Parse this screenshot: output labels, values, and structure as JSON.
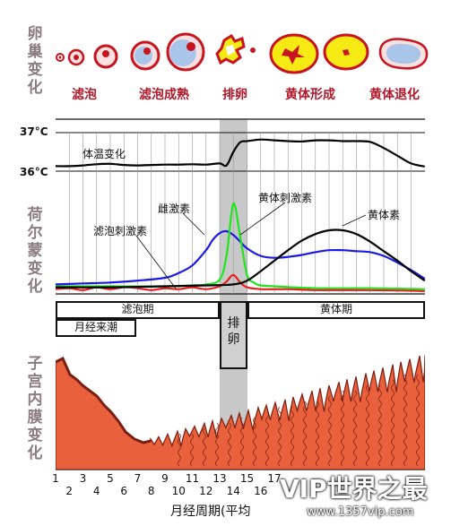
{
  "sections": {
    "ovary": [
      "卵",
      "巢",
      "变",
      "化"
    ],
    "hormone": [
      "荷",
      "尔",
      "蒙",
      "变",
      "化"
    ],
    "endometrium": [
      "子",
      "宫",
      "内",
      "膜",
      "变",
      "化"
    ]
  },
  "ovary_stages": [
    "滤泡",
    "滤泡成熟",
    "排卵",
    "黄体形成",
    "黄体退化"
  ],
  "temperature": {
    "high_label": "37°C",
    "low_label": "36°C",
    "curve_label": "体温变化"
  },
  "hormones": {
    "fsh": "滤泡刺激素",
    "estrogen": "雌激素",
    "lh": "黄体刺激素",
    "progesterone": "黄体素"
  },
  "phases": {
    "follicular": "滤泡期",
    "menstruation": "月经来潮",
    "ovulation": [
      "排",
      "卵"
    ],
    "luteal": "黄体期"
  },
  "days": [
    "1",
    "2",
    "3",
    "4",
    "5",
    "6",
    "7",
    "8",
    "9",
    "10",
    "11",
    "12",
    "13",
    "14",
    "15",
    "16",
    "17"
  ],
  "x_axis_title": "月经周期(平均",
  "colors": {
    "estrogen": "#1a1ae6",
    "lh": "#1ee61e",
    "fsh": "#e61e1e",
    "progesterone": "#000000",
    "endometrium": "#e8603c",
    "follicle_red": "#c8141e",
    "corpus_yellow": "#f5ea14",
    "ovulation_band": "#c8c8c8"
  },
  "watermark": {
    "logo": "VIP世界之最",
    "url": "www.1357vip.com"
  },
  "chart_data": {
    "type": "line",
    "x_label": "月经周期(平均",
    "x_range": [
      1,
      28
    ],
    "series": [
      {
        "name": "体温变化",
        "x": [
          1,
          2,
          3,
          4,
          5,
          6,
          7,
          8,
          9,
          10,
          11,
          12,
          13,
          13.5,
          14,
          14.5,
          15,
          16,
          17,
          18,
          19,
          20,
          21,
          22,
          23,
          24,
          25,
          26,
          27,
          28
        ],
        "y": [
          36.13,
          36.13,
          36.15,
          36.18,
          36.19,
          36.16,
          36.15,
          36.16,
          36.17,
          36.17,
          36.18,
          36.17,
          36.2,
          36.15,
          36.5,
          36.75,
          36.78,
          36.82,
          36.8,
          36.78,
          36.77,
          36.8,
          36.8,
          36.78,
          36.78,
          36.76,
          36.6,
          36.4,
          36.2,
          36.12
        ]
      },
      {
        "name": "雌激素",
        "x": [
          1,
          3,
          5,
          7,
          9,
          10,
          11,
          12,
          12.5,
          13,
          13.5,
          14,
          14.5,
          15,
          16,
          17,
          18,
          19,
          20,
          21,
          22,
          23,
          24,
          25,
          26,
          27,
          28
        ],
        "y": [
          10,
          11,
          12,
          14,
          17,
          22,
          30,
          46,
          57,
          64,
          66,
          62,
          55,
          48,
          40,
          38,
          39,
          41,
          44,
          46,
          46,
          45,
          44,
          40,
          33,
          25,
          16
        ]
      },
      {
        "name": "黄体刺激素",
        "x": [
          1,
          5,
          9,
          11,
          12,
          13,
          13.5,
          14,
          14.5,
          15,
          15.5,
          16,
          17,
          20,
          24,
          28
        ],
        "y": [
          8,
          8,
          8,
          9,
          10,
          15,
          40,
          95,
          60,
          20,
          12,
          9,
          8,
          6,
          6,
          5
        ]
      },
      {
        "name": "滤泡刺激素",
        "x": [
          1,
          2,
          3,
          4,
          5,
          6,
          7,
          8,
          9,
          10,
          11,
          12,
          13,
          13.5,
          14,
          14.5,
          15,
          16,
          18,
          20,
          24,
          28
        ],
        "y": [
          5,
          6,
          4,
          7,
          5,
          7,
          6,
          4,
          6,
          5,
          7,
          5,
          8,
          13,
          20,
          12,
          7,
          5,
          5,
          4,
          4,
          3
        ]
      },
      {
        "name": "黄体素",
        "x": [
          1,
          5,
          9,
          12,
          14,
          15,
          16,
          17,
          18,
          19,
          20,
          21,
          22,
          23,
          24,
          25,
          26,
          27,
          28
        ],
        "y": [
          7,
          7,
          8,
          9,
          10,
          14,
          24,
          35,
          46,
          56,
          63,
          67,
          67,
          63,
          55,
          45,
          35,
          24,
          14
        ]
      }
    ]
  }
}
